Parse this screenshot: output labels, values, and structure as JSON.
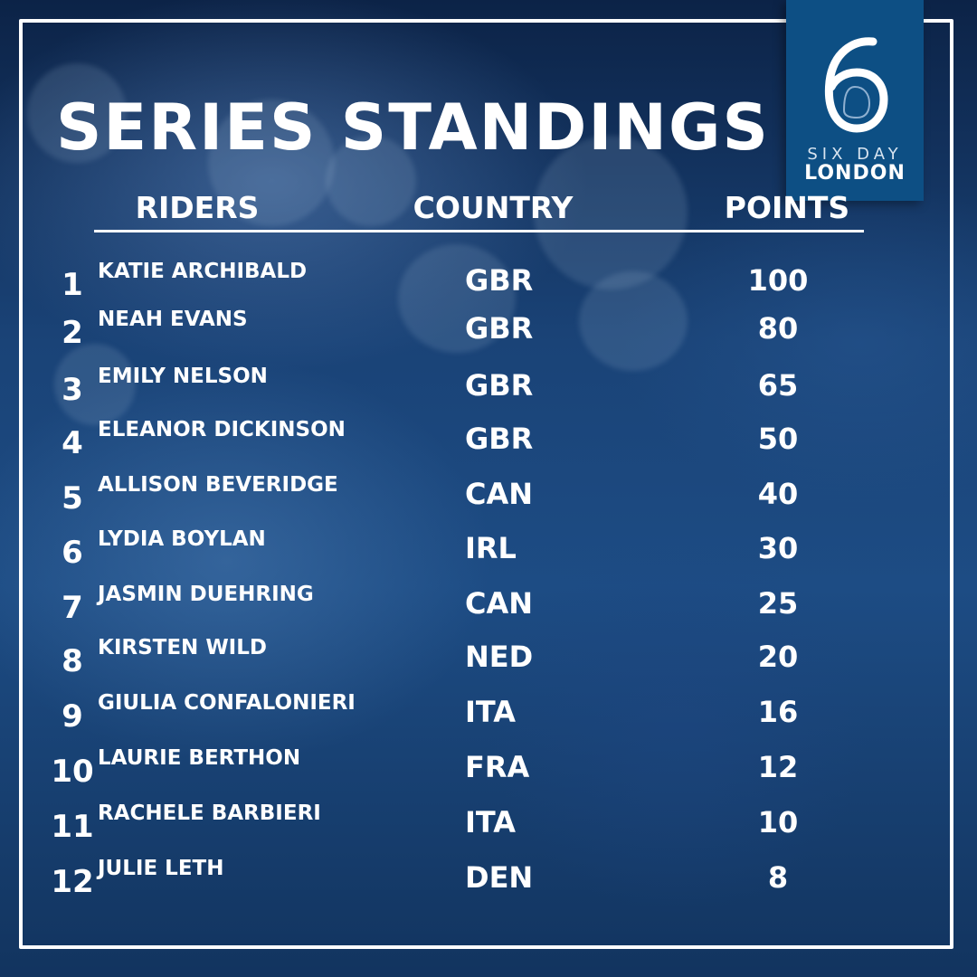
{
  "title": "SERIES STANDINGS",
  "logo": {
    "numeral": "6",
    "line1": "SIX DAY",
    "line2": "LONDON",
    "background": "#0d4f84"
  },
  "headers": {
    "riders": "RIDERS",
    "country": "COUNTRY",
    "points": "POINTS"
  },
  "standings": [
    {
      "rank": "1",
      "name": "KATIE ARCHIBALD",
      "country": "GBR",
      "points": "100"
    },
    {
      "rank": "2",
      "name": "NEAH EVANS",
      "country": "GBR",
      "points": "80"
    },
    {
      "rank": "3",
      "name": "EMILY NELSON",
      "country": "GBR",
      "points": "65"
    },
    {
      "rank": "4",
      "name": "ELEANOR DICKINSON",
      "country": "GBR",
      "points": "50"
    },
    {
      "rank": "5",
      "name": "ALLISON BEVERIDGE",
      "country": "CAN",
      "points": "40"
    },
    {
      "rank": "6",
      "name": "LYDIA BOYLAN",
      "country": "IRL",
      "points": "30"
    },
    {
      "rank": "7",
      "name": "JASMIN DUEHRING",
      "country": "CAN",
      "points": "25"
    },
    {
      "rank": "8",
      "name": "KIRSTEN WILD",
      "country": "NED",
      "points": "20"
    },
    {
      "rank": "9",
      "name": "GIULIA CONFALONIERI",
      "country": "ITA",
      "points": "16"
    },
    {
      "rank": "10",
      "name": "LAURIE BERTHON",
      "country": "FRA",
      "points": "12"
    },
    {
      "rank": "11",
      "name": "RACHELE BARBIERI",
      "country": "ITA",
      "points": "10"
    },
    {
      "rank": "12",
      "name": "JULIE LETH",
      "country": "DEN",
      "points": "8"
    }
  ]
}
